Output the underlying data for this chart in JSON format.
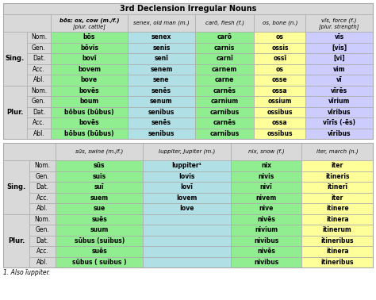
{
  "title": "3rd Declension Irregular Nouns",
  "title_bg": "#d9d9d9",
  "title_color": "black",
  "table1_col_headers": [
    "bōs; ox, cow (m./f.)\n[plur. cattle]",
    "senex, old man (m.)",
    "carō, flesh (f.)",
    "os, bone (n.)",
    "vīs, force (f.)\n[plur. strength]"
  ],
  "table1_row_labels": [
    "Nom.",
    "Gen.",
    "Dat.",
    "Acc.",
    "Abl.",
    "Nom.",
    "Gen.",
    "Dat.",
    "Acc.",
    "Abl."
  ],
  "table1_data": [
    [
      "bōs",
      "senex",
      "carō",
      "os",
      "vīs"
    ],
    [
      "bōvis",
      "senis",
      "carnis",
      "ossis",
      "[vis]"
    ],
    [
      "bovī",
      "senī",
      "carnī",
      "ossī",
      "[vi]"
    ],
    [
      "bovem",
      "senem",
      "carnem",
      "os",
      "vim"
    ],
    [
      "bove",
      "sene",
      "carne",
      "osse",
      "vī"
    ],
    [
      "bovēs",
      "senēs",
      "carnēs",
      "ossa",
      "vīrēs"
    ],
    [
      "boum",
      "senum",
      "carnium",
      "ossium",
      "vīrium"
    ],
    [
      "bōbus (būbus)",
      "senibus",
      "carnibus",
      "ossibus",
      "vīribus"
    ],
    [
      "bovēs",
      "senēs",
      "carnēs",
      "ossa",
      "vīrīs (-ēs)"
    ],
    [
      "bōbus (būbus)",
      "senibus",
      "carnibus",
      "ossibus",
      "vīribus"
    ]
  ],
  "table1_col_colors": [
    "#90ee90",
    "#b0e0e6",
    "#90ee90",
    "#ffff99",
    "#ccccff"
  ],
  "table2_col_headers": [
    "sūs, swine (m./f.)",
    "Iuppiter, Jupiter (m.)",
    "nix, snow (f.)",
    "iter, march (n.)"
  ],
  "table2_row_labels": [
    "Nom.",
    "Gen.",
    "Dat.",
    "Acc.",
    "Abl.",
    "Nom.",
    "Gen.",
    "Dat.",
    "Acc.",
    "Abl."
  ],
  "table2_data": [
    [
      "sūs",
      "Iuppiter¹",
      "nix",
      "iter"
    ],
    [
      "suis",
      "Iovis",
      "nivis",
      "itineris"
    ],
    [
      "suī",
      "Iovī",
      "nivī",
      "itinerī"
    ],
    [
      "suem",
      "Iovem",
      "nivem",
      "iter"
    ],
    [
      "sue",
      "Iove",
      "nive",
      "itinere"
    ],
    [
      "suēs",
      "",
      "nivēs",
      "itinera"
    ],
    [
      "suum",
      "",
      "nivium",
      "itinerum"
    ],
    [
      "sūbus (suibus)",
      "",
      "nivibus",
      "itineribus"
    ],
    [
      "suēs",
      "",
      "nivēs",
      "itinera"
    ],
    [
      "sūbus ( suibus )",
      "",
      "nivibus",
      "itineribus"
    ]
  ],
  "table2_col_colors": [
    "#90ee90",
    "#b0e0e6",
    "#90ee90",
    "#ffff99"
  ],
  "footnote": "1. Also īuppiter.",
  "gray_bg": "#d9d9d9",
  "border_color": "#aaaaaa"
}
